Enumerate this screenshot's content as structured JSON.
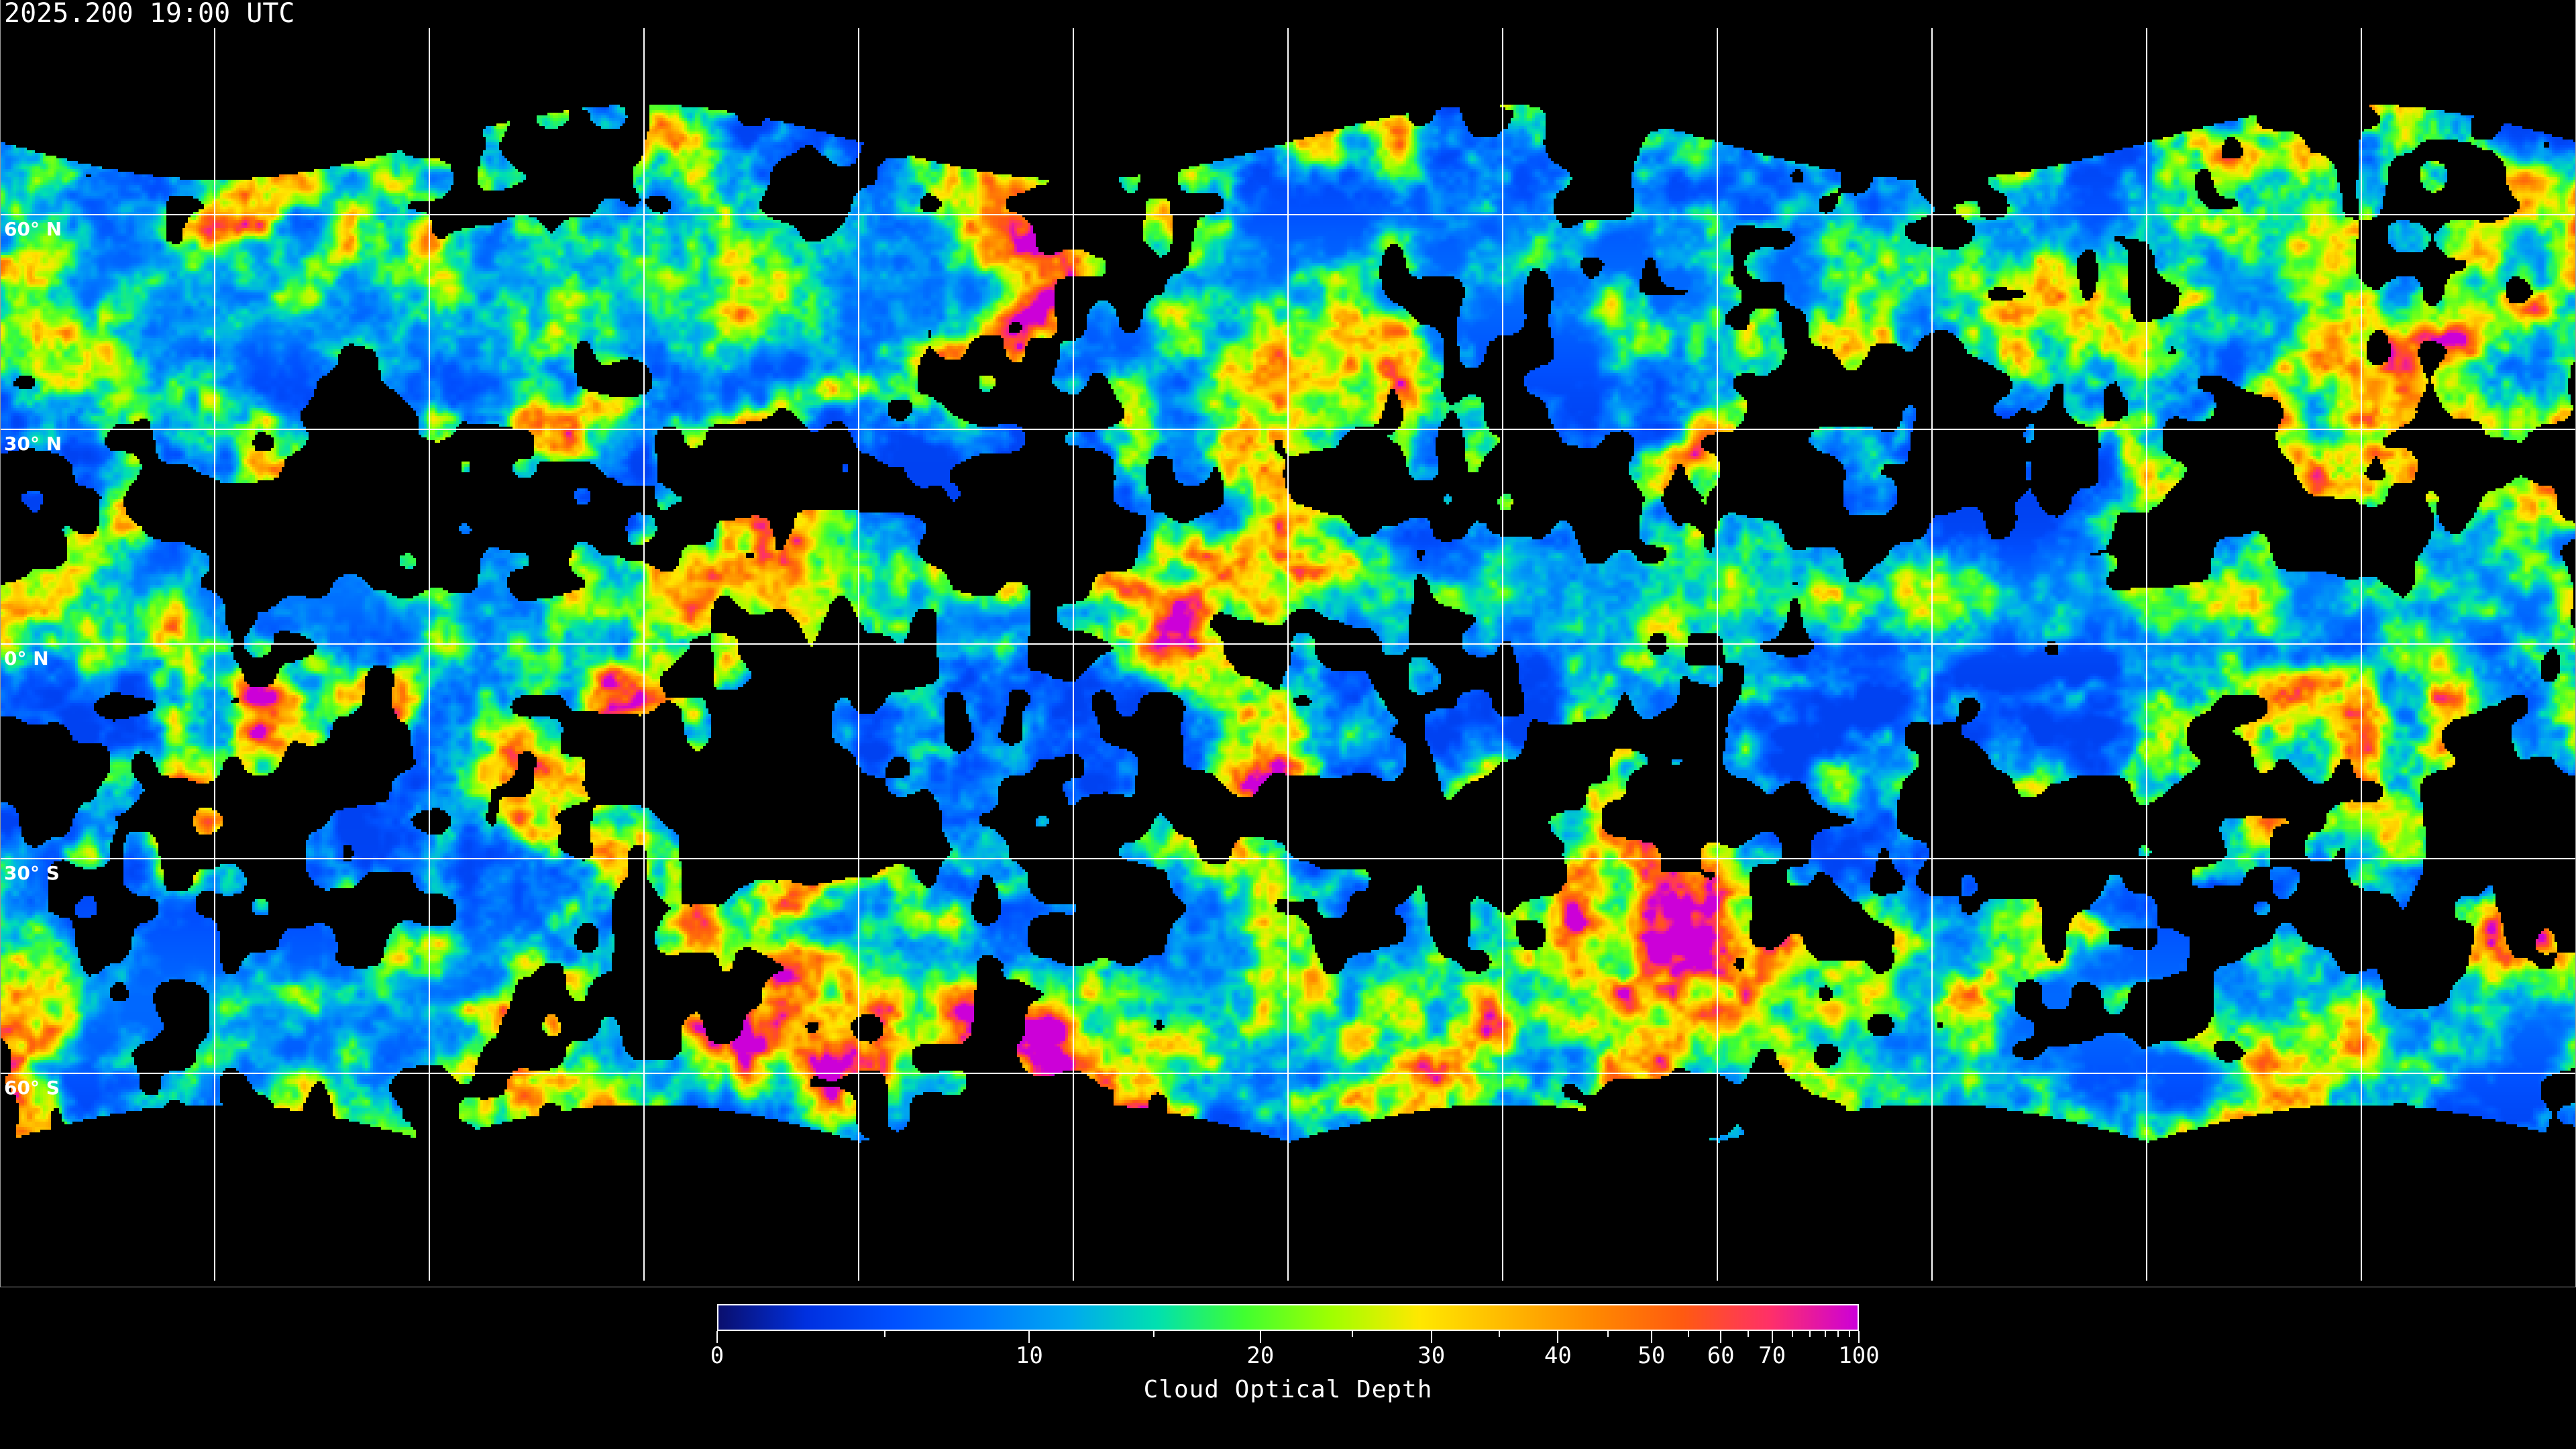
{
  "title": "2025.200 19:00 UTC",
  "map": {
    "variable": "Cloud Optical Depth",
    "projection": "equirectangular",
    "graticule_step_deg": 30,
    "latitude_labels": [
      {
        "lat": 60,
        "label": "60° N"
      },
      {
        "lat": 30,
        "label": "30° N"
      },
      {
        "lat": 0,
        "label": "0° N"
      },
      {
        "lat": -30,
        "label": "30° S"
      },
      {
        "lat": -60,
        "label": "60° S"
      }
    ],
    "no_data_color": "#000000",
    "graticule_color": "#ffffff"
  },
  "colorbar": {
    "label": "Cloud Optical Depth",
    "range": [
      0,
      100
    ],
    "major_ticks": [
      {
        "value": 0,
        "label": "0"
      },
      {
        "value": 10,
        "label": "10"
      },
      {
        "value": 20,
        "label": "20"
      },
      {
        "value": 30,
        "label": "30"
      },
      {
        "value": 40,
        "label": "40"
      },
      {
        "value": 50,
        "label": "50"
      },
      {
        "value": 60,
        "label": "60"
      },
      {
        "value": 70,
        "label": "70"
      },
      {
        "value": 100,
        "label": "100"
      }
    ],
    "minor_ticks": [
      5,
      15,
      25,
      35,
      45,
      55,
      65,
      75,
      80,
      85,
      90,
      95
    ],
    "colormap": [
      "#0a0f6e",
      "#0030e0",
      "#0050ff",
      "#0078ff",
      "#00a8f0",
      "#00e0b0",
      "#40ff30",
      "#a0ff00",
      "#ffe800",
      "#ffb800",
      "#ff8800",
      "#ff5a10",
      "#ff3068",
      "#cc00d8"
    ]
  }
}
